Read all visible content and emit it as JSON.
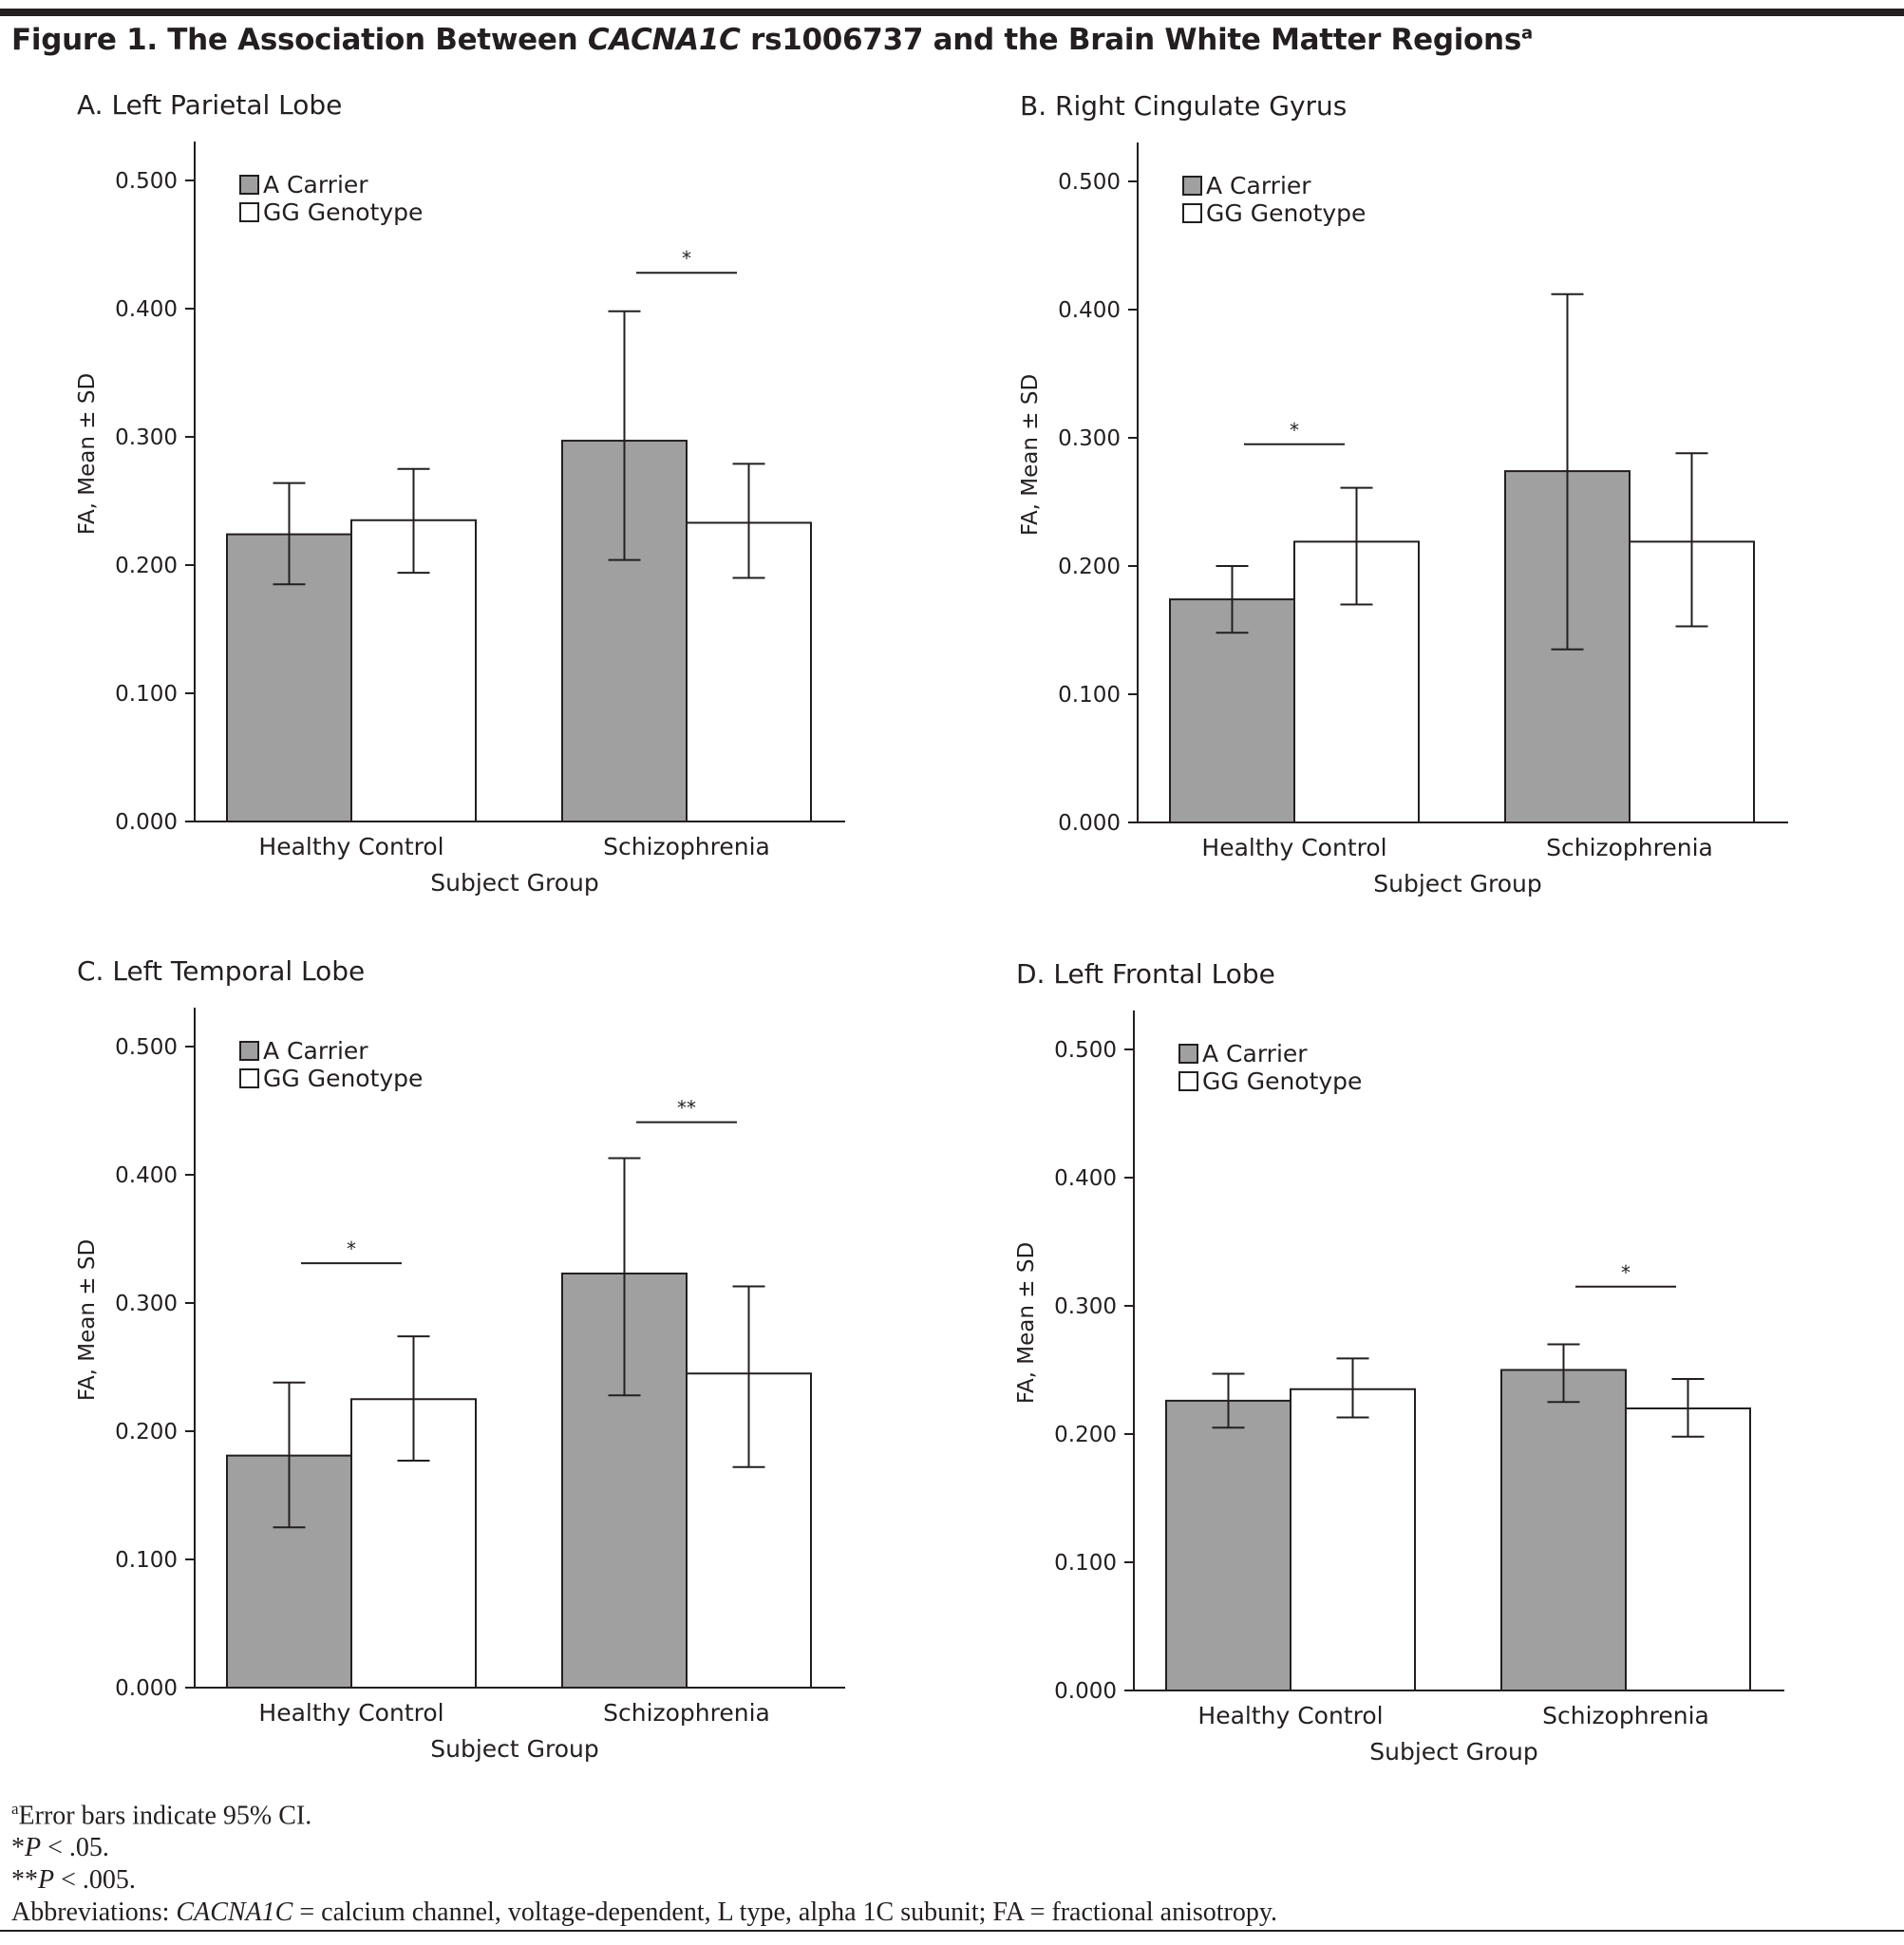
{
  "figure": {
    "title_prefix": "Figure 1. The Association Between ",
    "title_gene": "CACNA1C",
    "title_suffix": " rs1006737 and the Brain White Matter Regions",
    "title_sup": "a"
  },
  "footnotes": {
    "a_sup": "a",
    "a_text": "Error bars indicate 95% CI.",
    "p1_stars": "*",
    "p1_p": "P",
    "p1_text": " < .05.",
    "p2_stars": "**",
    "p2_p": "P",
    "p2_text": " < .005.",
    "abbr_prefix": "Abbreviations: ",
    "abbr_gene": "CACNA1C",
    "abbr_text": " = calcium channel, voltage-dependent, L type, alpha 1C subunit; FA = fractional anisotropy."
  },
  "colors": {
    "a_carrier": "#a0a0a0",
    "gg_genotype": "#ffffff",
    "stroke": "#231f20"
  },
  "chart_data": [
    {
      "type": "bar",
      "title": "A. Left Parietal Lobe",
      "xlabel": "Subject Group",
      "ylabel": "FA, Mean ± SD",
      "ylim": [
        0,
        0.5
      ],
      "yticks": [
        "0.000",
        "0.100",
        "0.200",
        "0.300",
        "0.400",
        "0.500"
      ],
      "categories": [
        "Healthy Control",
        "Schizophrenia"
      ],
      "legend": "top-left",
      "grid": false,
      "series": [
        {
          "name": "A Carrier",
          "values": [
            0.224,
            0.297
          ],
          "ci_low": [
            0.185,
            0.204
          ],
          "ci_high": [
            0.264,
            0.398
          ]
        },
        {
          "name": "GG Genotype",
          "values": [
            0.235,
            0.233
          ],
          "ci_low": [
            0.194,
            0.19
          ],
          "ci_high": [
            0.275,
            0.279
          ]
        }
      ],
      "annotations": [
        {
          "category": "Schizophrenia",
          "label": "*",
          "y": 0.428
        }
      ]
    },
    {
      "type": "bar",
      "title": "B. Right Cingulate Gyrus",
      "xlabel": "Subject Group",
      "ylabel": "FA, Mean ± SD",
      "ylim": [
        0,
        0.5
      ],
      "yticks": [
        "0.000",
        "0.100",
        "0.200",
        "0.300",
        "0.400",
        "0.500"
      ],
      "categories": [
        "Healthy Control",
        "Schizophrenia"
      ],
      "legend": "top-left",
      "grid": false,
      "series": [
        {
          "name": "A Carrier",
          "values": [
            0.174,
            0.274
          ],
          "ci_low": [
            0.148,
            0.135
          ],
          "ci_high": [
            0.2,
            0.412
          ]
        },
        {
          "name": "GG Genotype",
          "values": [
            0.219,
            0.219
          ],
          "ci_low": [
            0.17,
            0.153
          ],
          "ci_high": [
            0.261,
            0.288
          ]
        }
      ],
      "annotations": [
        {
          "category": "Healthy Control",
          "label": "*",
          "y": 0.295
        }
      ]
    },
    {
      "type": "bar",
      "title": "C. Left Temporal Lobe",
      "xlabel": "Subject Group",
      "ylabel": "FA, Mean ± SD",
      "ylim": [
        0,
        0.5
      ],
      "yticks": [
        "0.000",
        "0.100",
        "0.200",
        "0.300",
        "0.400",
        "0.500"
      ],
      "categories": [
        "Healthy Control",
        "Schizophrenia"
      ],
      "legend": "top-left",
      "grid": false,
      "series": [
        {
          "name": "A Carrier",
          "values": [
            0.181,
            0.323
          ],
          "ci_low": [
            0.125,
            0.228
          ],
          "ci_high": [
            0.238,
            0.413
          ]
        },
        {
          "name": "GG Genotype",
          "values": [
            0.225,
            0.245
          ],
          "ci_low": [
            0.177,
            0.172
          ],
          "ci_high": [
            0.274,
            0.313
          ]
        }
      ],
      "annotations": [
        {
          "category": "Healthy Control",
          "label": "*",
          "y": 0.331
        },
        {
          "category": "Schizophrenia",
          "label": "**",
          "y": 0.441
        }
      ]
    },
    {
      "type": "bar",
      "title": "D. Left Frontal Lobe",
      "xlabel": "Subject Group",
      "ylabel": "FA, Mean ± SD",
      "ylim": [
        0,
        0.5
      ],
      "yticks": [
        "0.000",
        "0.100",
        "0.200",
        "0.300",
        "0.400",
        "0.500"
      ],
      "categories": [
        "Healthy Control",
        "Schizophrenia"
      ],
      "legend": "top-left",
      "grid": false,
      "series": [
        {
          "name": "A Carrier",
          "values": [
            0.226,
            0.25
          ],
          "ci_low": [
            0.205,
            0.225
          ],
          "ci_high": [
            0.247,
            0.27
          ]
        },
        {
          "name": "GG Genotype",
          "values": [
            0.235,
            0.22
          ],
          "ci_low": [
            0.213,
            0.198
          ],
          "ci_high": [
            0.259,
            0.243
          ]
        }
      ],
      "annotations": [
        {
          "category": "Schizophrenia",
          "label": "*",
          "y": 0.315
        }
      ]
    }
  ]
}
